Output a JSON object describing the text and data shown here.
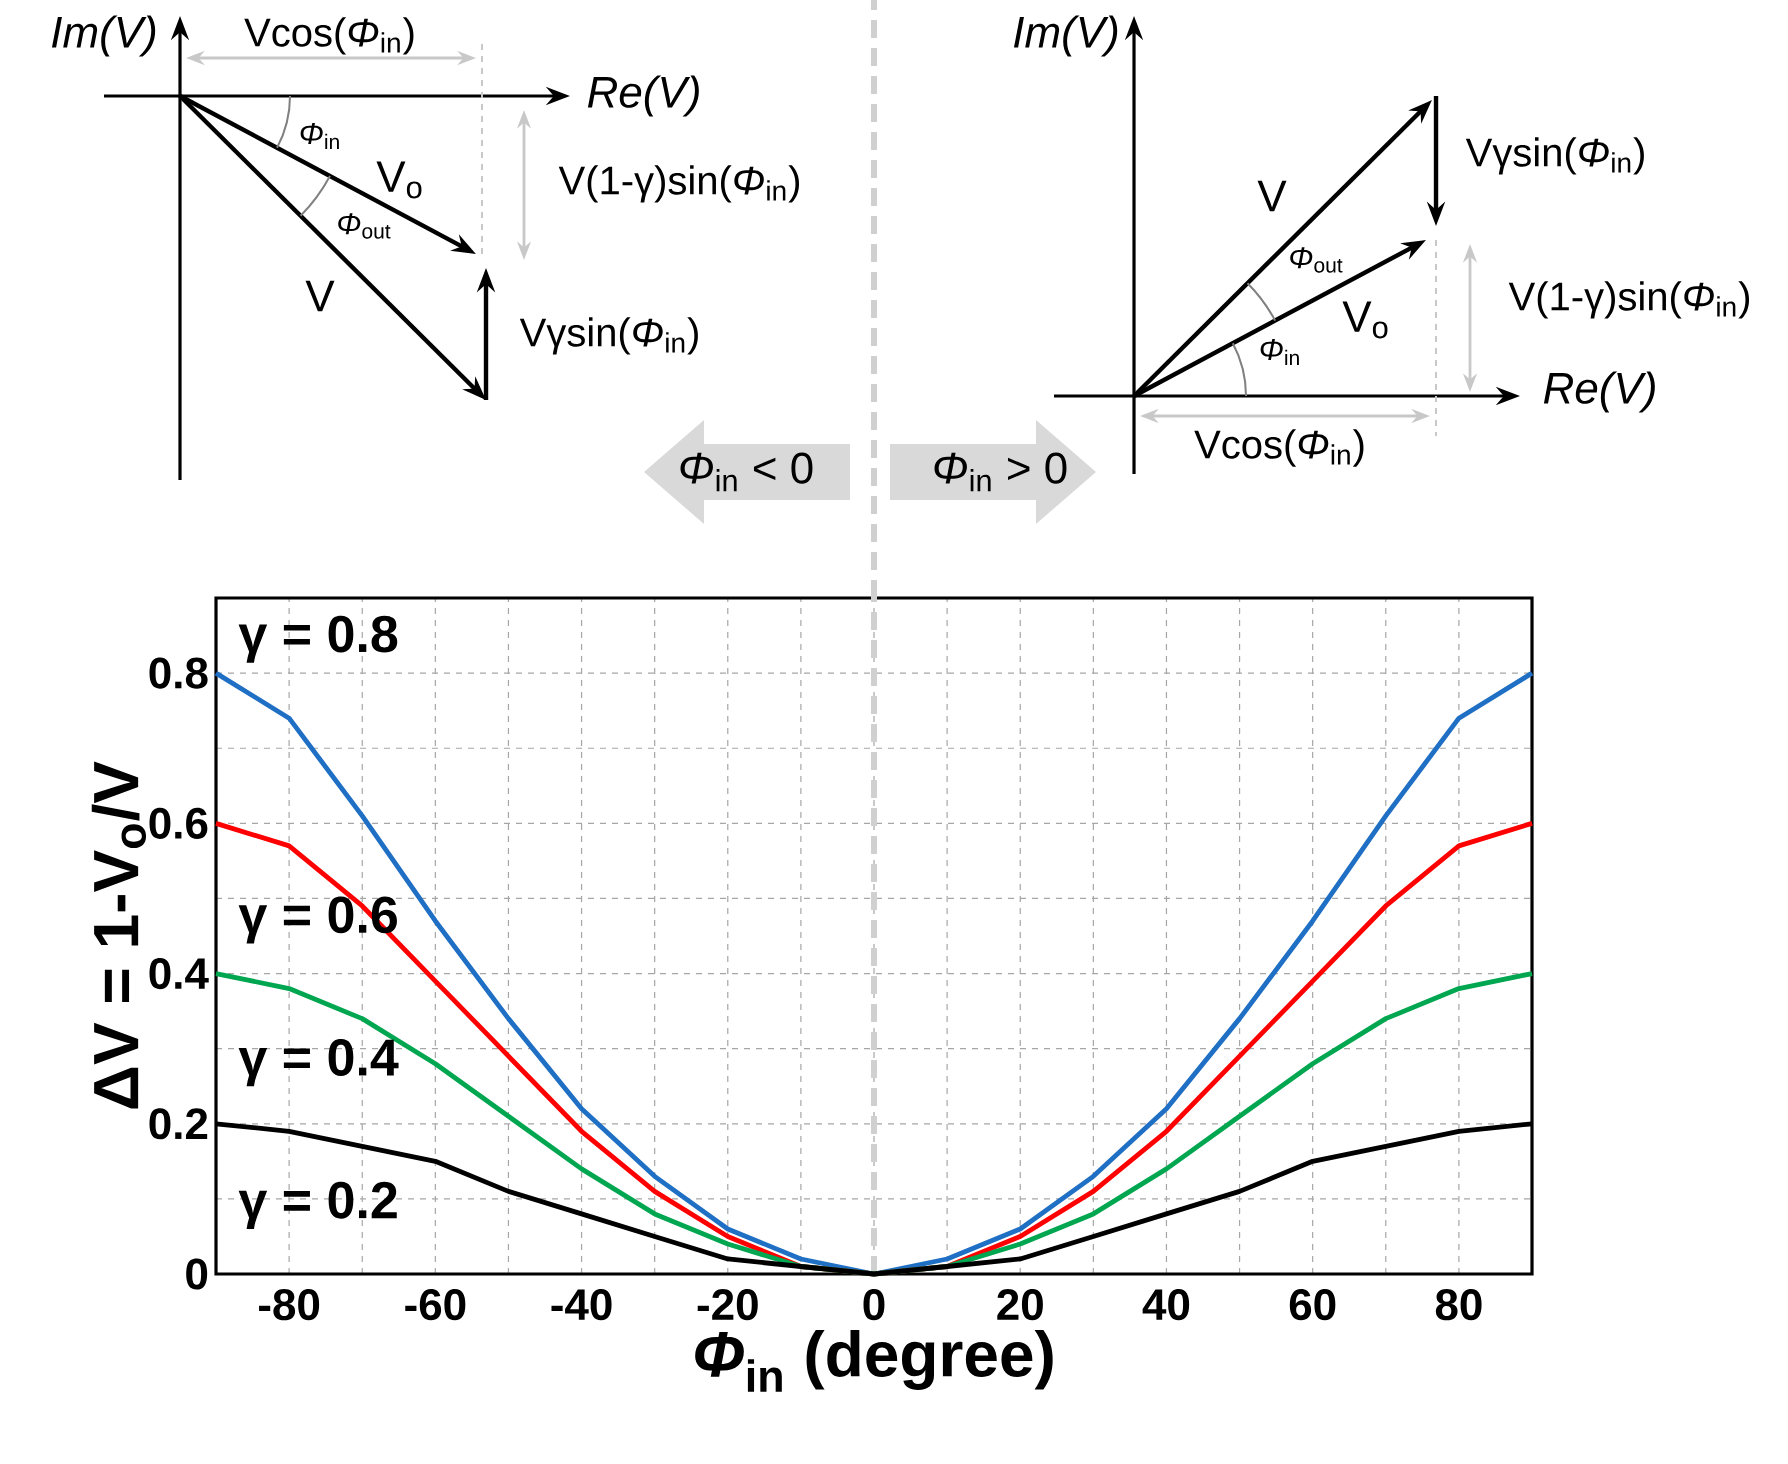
{
  "chart_data": {
    "type": "line",
    "xlabel": "*Φ*$_{in}$ (degree)",
    "ylabel": "ΔV = 1-V$_{o}$/V",
    "x": [
      -90,
      -80,
      -70,
      -60,
      -50,
      -40,
      -30,
      -20,
      -10,
      0,
      10,
      20,
      30,
      40,
      50,
      60,
      70,
      80,
      90
    ],
    "series": [
      {
        "name": "γ = 0.8",
        "color": "#1f6fc4",
        "values": [
          0.8,
          0.74,
          0.61,
          0.47,
          0.34,
          0.22,
          0.13,
          0.06,
          0.02,
          0,
          0.02,
          0.06,
          0.13,
          0.22,
          0.34,
          0.47,
          0.61,
          0.74,
          0.8
        ]
      },
      {
        "name": "γ = 0.6",
        "color": "#ff0000",
        "values": [
          0.6,
          0.57,
          0.49,
          0.39,
          0.29,
          0.19,
          0.11,
          0.05,
          0.01,
          0,
          0.01,
          0.05,
          0.11,
          0.19,
          0.29,
          0.39,
          0.49,
          0.57,
          0.6
        ]
      },
      {
        "name": "γ = 0.4",
        "color": "#00a650",
        "values": [
          0.4,
          0.38,
          0.34,
          0.28,
          0.21,
          0.14,
          0.08,
          0.04,
          0.01,
          0,
          0.01,
          0.04,
          0.08,
          0.14,
          0.21,
          0.28,
          0.34,
          0.38,
          0.4
        ]
      },
      {
        "name": "γ = 0.2",
        "color": "#000000",
        "values": [
          0.2,
          0.19,
          0.17,
          0.15,
          0.11,
          0.08,
          0.05,
          0.02,
          0.01,
          0,
          0.01,
          0.02,
          0.05,
          0.08,
          0.11,
          0.15,
          0.17,
          0.19,
          0.2
        ]
      }
    ],
    "xlim": [
      -90,
      90
    ],
    "xticks": [
      {
        "value": -90,
        "label": null
      },
      -80,
      {
        "value": -70,
        "label": null
      },
      -60,
      {
        "value": -50,
        "label": null
      },
      -40,
      {
        "value": -30,
        "label": null
      },
      -20,
      {
        "value": -10,
        "label": null
      },
      0,
      {
        "value": 10,
        "label": null
      },
      20,
      {
        "value": 30,
        "label": null
      },
      40,
      {
        "value": 50,
        "label": null
      },
      60,
      {
        "value": 70,
        "label": null
      },
      80,
      {
        "value": 90,
        "label": null
      }
    ],
    "ylim": [
      0,
      0.9
    ],
    "yticks": [
      0,
      {
        "value": 0.1,
        "label": null
      },
      0.2,
      {
        "value": 0.3,
        "label": null
      },
      0.4,
      {
        "value": 0.5,
        "label": null
      },
      0.6,
      {
        "value": 0.7,
        "label": null
      },
      0.8,
      {
        "value": 0.9,
        "label": null
      }
    ],
    "grid": true,
    "line_style": "solid",
    "ref_lines": [
      {
        "axis": "x",
        "value": 0,
        "color": "#d0d0d0",
        "line_style": "dashed"
      }
    ],
    "annotations": [
      "*Im(V)*",
      "*Re(V)*",
      "Vcos(*Φ*$_{in}$)",
      "V(1-γ)sin(*Φ*$_{in}$)",
      "Vγsin(*Φ*$_{in}$)",
      "V",
      "V$_{o}$",
      "*Φ*$_{in}$",
      "*Φ*$_{out}$",
      "*Im(V)*",
      "*Re(V)*",
      "Vcos(*Φ*$_{in}$)",
      "V(1-γ)sin(*Φ*$_{in}$)",
      "Vγsin(*Φ*$_{in}$)",
      "V",
      "V$_{o}$",
      "*Φ*$_{in}$",
      "*Φ*$_{out}$",
      "*Φ*$_{in}$ < 0",
      "*Φ*$_{in}$ > 0"
    ]
  }
}
